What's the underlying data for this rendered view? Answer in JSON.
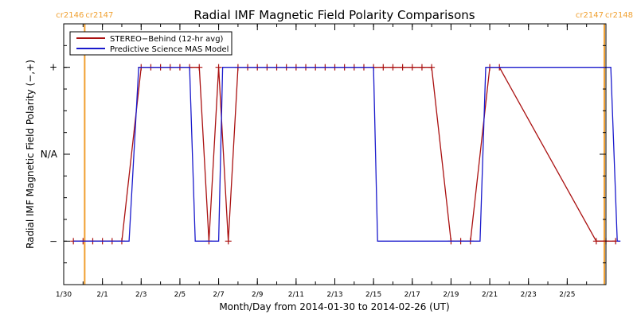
{
  "chart_data": {
    "type": "line",
    "title": "Radial IMF Magnetic Field Polarity Comparisons",
    "xlabel": "Month/Day from 2014-01-30 to 2014-02-26 (UT)",
    "ylabel": "Radial IMF Magnetic Field Polarity (−,+)",
    "xlim": [
      "2014-01-30",
      "2014-02-27"
    ],
    "ylim": [
      -1.5,
      1.5
    ],
    "x_tick_labels": [
      "1/30",
      "2/1",
      "2/3",
      "2/5",
      "2/7",
      "2/9",
      "2/11",
      "2/13",
      "2/15",
      "2/17",
      "2/19",
      "2/21",
      "2/23",
      "2/25"
    ],
    "x_tick_dates": [
      "2014-01-30",
      "2014-02-01",
      "2014-02-03",
      "2014-02-05",
      "2014-02-07",
      "2014-02-09",
      "2014-02-11",
      "2014-02-13",
      "2014-02-15",
      "2014-02-17",
      "2014-02-19",
      "2014-02-21",
      "2014-02-23",
      "2014-02-25"
    ],
    "y_ticks": [
      {
        "value": 1,
        "label": "+"
      },
      {
        "value": 0,
        "label": "N/A"
      },
      {
        "value": -1,
        "label": "−"
      }
    ],
    "legend_position": "top-left",
    "carrington_markers": [
      {
        "date": "2014-01-31T02:00",
        "label_left": "cr2146",
        "label_right": "cr2147",
        "color": "#f0a030"
      },
      {
        "date": "2014-02-26T22:00",
        "label_left": "cr2147",
        "label_right": "cr2148",
        "color": "#f0a030"
      }
    ],
    "series": [
      {
        "name": "STEREO−Behind (12-hr avg)",
        "color": "#aa1111",
        "marker": "plus",
        "points": [
          [
            "2014-01-30T12:00",
            -1
          ],
          [
            "2014-01-31T00:00",
            -1
          ],
          [
            "2014-01-31T12:00",
            -1
          ],
          [
            "2014-02-01T00:00",
            -1
          ],
          [
            "2014-02-01T12:00",
            -1
          ],
          [
            "2014-02-02T00:00",
            -1
          ],
          [
            "2014-02-03T00:00",
            1
          ],
          [
            "2014-02-03T12:00",
            1
          ],
          [
            "2014-02-04T00:00",
            1
          ],
          [
            "2014-02-04T12:00",
            1
          ],
          [
            "2014-02-05T00:00",
            1
          ],
          [
            "2014-02-05T12:00",
            1
          ],
          [
            "2014-02-06T00:00",
            1
          ],
          [
            "2014-02-06T12:00",
            -1
          ],
          [
            "2014-02-07T00:00",
            1
          ],
          [
            "2014-02-07T12:00",
            -1
          ],
          [
            "2014-02-08T00:00",
            1
          ],
          [
            "2014-02-08T12:00",
            1
          ],
          [
            "2014-02-09T00:00",
            1
          ],
          [
            "2014-02-09T12:00",
            1
          ],
          [
            "2014-02-10T00:00",
            1
          ],
          [
            "2014-02-10T12:00",
            1
          ],
          [
            "2014-02-11T00:00",
            1
          ],
          [
            "2014-02-11T12:00",
            1
          ],
          [
            "2014-02-12T00:00",
            1
          ],
          [
            "2014-02-12T12:00",
            1
          ],
          [
            "2014-02-13T00:00",
            1
          ],
          [
            "2014-02-13T12:00",
            1
          ],
          [
            "2014-02-14T00:00",
            1
          ],
          [
            "2014-02-14T12:00",
            1
          ],
          [
            "2014-02-15T00:00",
            1
          ],
          [
            "2014-02-15T12:00",
            1
          ],
          [
            "2014-02-16T00:00",
            1
          ],
          [
            "2014-02-16T12:00",
            1
          ],
          [
            "2014-02-17T00:00",
            1
          ],
          [
            "2014-02-17T12:00",
            1
          ],
          [
            "2014-02-18T00:00",
            1
          ],
          [
            "2014-02-19T00:00",
            -1
          ],
          [
            "2014-02-19T12:00",
            -1
          ],
          [
            "2014-02-20T00:00",
            -1
          ],
          [
            "2014-02-21T00:00",
            1
          ],
          [
            "2014-02-21T12:00",
            1
          ],
          [
            "2014-02-26T12:00",
            -1
          ],
          [
            "2014-02-27T00:00",
            -1
          ],
          [
            "2014-02-27T12:00",
            -1
          ]
        ]
      },
      {
        "name": "Predictive Science MAS Model",
        "color": "#1a1acc",
        "marker": "none",
        "points": [
          [
            "2014-01-30T12:00",
            -1
          ],
          [
            "2014-02-02T09:00",
            -1
          ],
          [
            "2014-02-02T21:00",
            1
          ],
          [
            "2014-02-05T12:00",
            1
          ],
          [
            "2014-02-05T19:00",
            -1
          ],
          [
            "2014-02-07T00:00",
            -1
          ],
          [
            "2014-02-07T05:00",
            1
          ],
          [
            "2014-02-15T00:00",
            1
          ],
          [
            "2014-02-15T05:00",
            -1
          ],
          [
            "2014-02-20T12:00",
            -1
          ],
          [
            "2014-02-20T19:00",
            1
          ],
          [
            "2014-02-27T06:00",
            1
          ],
          [
            "2014-02-27T14:00",
            -1
          ],
          [
            "2014-02-27T18:00",
            -1
          ]
        ]
      }
    ]
  }
}
